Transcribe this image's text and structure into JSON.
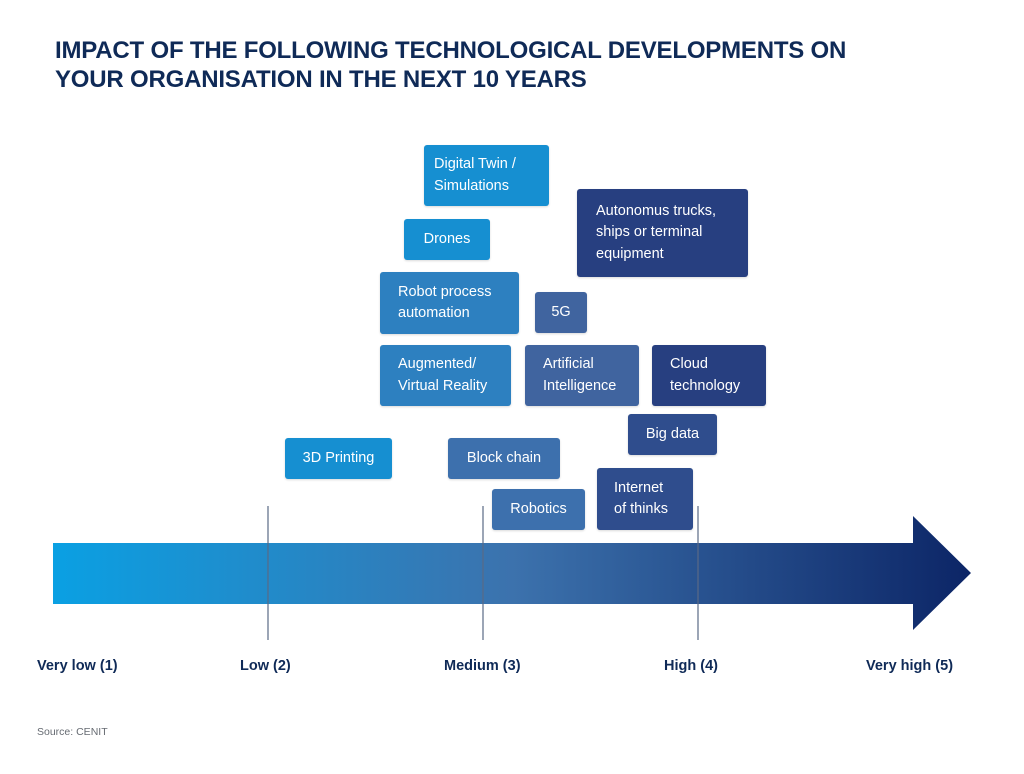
{
  "title": {
    "line1": "IMPACT OF THE FOLLOWING TECHNOLOGICAL DEVELOPMENTS ON",
    "line2": "YOUR ORGANISATION IN THE NEXT 10 YEARS"
  },
  "axis": {
    "labels": [
      "Very low (1)",
      "Low (2)",
      "Medium (3)",
      "High (4)",
      "Very high (5)"
    ],
    "colors": {
      "start": "#0aa0e3",
      "mid": "#3c72ad",
      "end": "#0c2566"
    }
  },
  "technologies": {
    "digital_twin": [
      "Digital Twin /",
      "Simulations"
    ],
    "autonomous": [
      "Autonomus trucks,",
      "ships or terminal",
      "equipment"
    ],
    "drones": [
      "Drones"
    ],
    "rpa": [
      "Robot process",
      "automation"
    ],
    "five_g": [
      "5G"
    ],
    "ar_vr": [
      "Augmented/",
      "Virtual Reality"
    ],
    "ai": [
      "Artificial",
      "Intelligence"
    ],
    "cloud": [
      "Cloud",
      "technology"
    ],
    "big_data": [
      "Big data"
    ],
    "printing": [
      "3D Printing"
    ],
    "blockchain": [
      "Block chain"
    ],
    "iot": [
      "Internet",
      "of thinks"
    ],
    "robotics": [
      "Robotics"
    ]
  },
  "source": "Source: CENIT"
}
